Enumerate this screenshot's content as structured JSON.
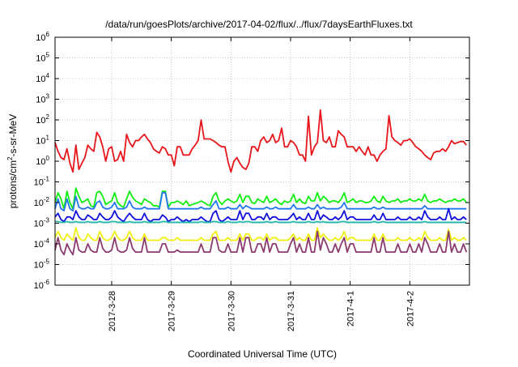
{
  "chart_data": {
    "type": "line",
    "title": "/data/run/goesPlots/archive/2017-04-02/flux/../flux/7daysEarthFluxes.txt",
    "xlabel": "Coordinated Universal Time (UTC)",
    "ylabel_prefix": "protons/cm",
    "ylabel_sup": "2",
    "ylabel_suffix": "-s-sr-MeV",
    "y_scale": "log",
    "ylim": [
      1e-06,
      1000000.0
    ],
    "y_ticks": [
      {
        "base": "10",
        "exp": "-6",
        "value": -6
      },
      {
        "base": "10",
        "exp": "-5",
        "value": -5
      },
      {
        "base": "10",
        "exp": "-4",
        "value": -4
      },
      {
        "base": "10",
        "exp": "-3",
        "value": -3
      },
      {
        "base": "10",
        "exp": "-2",
        "value": -2
      },
      {
        "base": "10",
        "exp": "-1",
        "value": -1
      },
      {
        "base": "10",
        "exp": "0",
        "value": 0
      },
      {
        "base": "10",
        "exp": "1",
        "value": 1
      },
      {
        "base": "10",
        "exp": "2",
        "value": 2
      },
      {
        "base": "10",
        "exp": "3",
        "value": 3
      },
      {
        "base": "10",
        "exp": "4",
        "value": 4
      },
      {
        "base": "10",
        "exp": "5",
        "value": 5
      },
      {
        "base": "10",
        "exp": "6",
        "value": 6
      }
    ],
    "x_range_days": [
      -0.95,
      6.0
    ],
    "x_ticks": [
      {
        "label": "2017-3-28",
        "day": 0
      },
      {
        "label": "2017-3-29",
        "day": 1
      },
      {
        "label": "2017-3-30",
        "day": 2
      },
      {
        "label": "2017-3-31",
        "day": 3
      },
      {
        "label": "2017-4-1",
        "day": 4
      },
      {
        "label": "2017-4-2",
        "day": 5
      }
    ],
    "grid": true,
    "x_start_day": -0.95,
    "x_step_days": 0.05,
    "series": [
      {
        "color": "#e8161b",
        "values": [
          8,
          3,
          1.5,
          1.2,
          4,
          0.8,
          0.3,
          6,
          0.4,
          0.8,
          1.5,
          6,
          4,
          3,
          25,
          15,
          5,
          1,
          4,
          5,
          1,
          1.2,
          3,
          1,
          20,
          8,
          5,
          10,
          10,
          15,
          20,
          12,
          8,
          4,
          3,
          2.5,
          5,
          4,
          2,
          2,
          0.6,
          5,
          5,
          2,
          2,
          2,
          4,
          6,
          10,
          100,
          12,
          12,
          12,
          10,
          8,
          6,
          5,
          5,
          1,
          0.3,
          1,
          1.5,
          0.8,
          0.5,
          0.4,
          0.8,
          5,
          5,
          3,
          10,
          15,
          8,
          10,
          20,
          8,
          10,
          40,
          5,
          5,
          10,
          8,
          5,
          2,
          2,
          1,
          150,
          2,
          5,
          8,
          300,
          10,
          8,
          15,
          5,
          5,
          30,
          20,
          15,
          5,
          5,
          5,
          3,
          5,
          3,
          2,
          5,
          2,
          2,
          1,
          2,
          3,
          4,
          160,
          15,
          10,
          8,
          6,
          10,
          10,
          12,
          8,
          5,
          4,
          3,
          2,
          1.5,
          1.2,
          2.5,
          3,
          3,
          4,
          3,
          5,
          10,
          7,
          8,
          9,
          9,
          6
        ]
      },
      {
        "color": "#10ee10",
        "values": [
          0.01,
          0.03,
          0.015,
          0.005,
          0.035,
          0.01,
          0.005,
          0.05,
          0.02,
          0.01,
          0.012,
          0.015,
          0.007,
          0.006,
          0.03,
          0.035,
          0.02,
          0.008,
          0.01,
          0.012,
          0.03,
          0.01,
          0.007,
          0.006,
          0.015,
          0.035,
          0.018,
          0.012,
          0.01,
          0.008,
          0.015,
          0.012,
          0.01,
          0.007,
          0.007,
          0.006,
          0.035,
          0.035,
          0.006,
          0.01,
          0.01,
          0.012,
          0.01,
          0.008,
          0.012,
          0.007,
          0.008,
          0.009,
          0.01,
          0.012,
          0.01,
          0.008,
          0.007,
          0.02,
          0.03,
          0.012,
          0.008,
          0.012,
          0.015,
          0.012,
          0.01,
          0.012,
          0.025,
          0.01,
          0.02,
          0.02,
          0.01,
          0.009,
          0.015,
          0.012,
          0.01,
          0.02,
          0.01,
          0.012,
          0.015,
          0.01,
          0.008,
          0.012,
          0.01,
          0.012,
          0.025,
          0.01,
          0.015,
          0.01,
          0.009,
          0.02,
          0.012,
          0.012,
          0.03,
          0.012,
          0.02,
          0.015,
          0.01,
          0.012,
          0.012,
          0.01,
          0.015,
          0.03,
          0.01,
          0.012,
          0.015,
          0.01,
          0.012,
          0.012,
          0.01,
          0.01,
          0.012,
          0.02,
          0.012,
          0.01,
          0.02,
          0.012,
          0.01,
          0.012,
          0.012,
          0.015,
          0.01,
          0.012,
          0.012,
          0.015,
          0.012,
          0.012,
          0.015,
          0.012,
          0.025,
          0.012,
          0.01,
          0.012,
          0.012,
          0.015,
          0.012,
          0.01,
          0.012,
          0.012,
          0.015,
          0.012,
          0.012,
          0.015,
          0.01
        ]
      },
      {
        "color": "#2277ee",
        "values": [
          0.005,
          0.015,
          0.005,
          0.004,
          0.015,
          0.005,
          0.004,
          0.02,
          0.006,
          0.005,
          0.005,
          0.006,
          0.005,
          0.005,
          0.01,
          0.012,
          0.006,
          0.005,
          0.005,
          0.006,
          0.01,
          0.005,
          0.005,
          0.005,
          0.006,
          0.012,
          0.006,
          0.005,
          0.005,
          0.005,
          0.006,
          0.005,
          0.005,
          0.005,
          0.005,
          0.005,
          0.03,
          0.03,
          0.005,
          0.005,
          0.005,
          0.005,
          0.005,
          0.005,
          0.005,
          0.005,
          0.005,
          0.005,
          0.005,
          0.006,
          0.005,
          0.005,
          0.005,
          0.008,
          0.012,
          0.005,
          0.005,
          0.005,
          0.006,
          0.005,
          0.005,
          0.005,
          0.008,
          0.005,
          0.007,
          0.006,
          0.005,
          0.005,
          0.005,
          0.005,
          0.005,
          0.006,
          0.005,
          0.005,
          0.006,
          0.005,
          0.005,
          0.005,
          0.005,
          0.005,
          0.008,
          0.005,
          0.005,
          0.005,
          0.005,
          0.006,
          0.005,
          0.005,
          0.008,
          0.005,
          0.006,
          0.005,
          0.005,
          0.005,
          0.005,
          0.005,
          0.006,
          0.01,
          0.005,
          0.005,
          0.005,
          0.005,
          0.005,
          0.005,
          0.005,
          0.005,
          0.005,
          0.006,
          0.005,
          0.005,
          0.006,
          0.005,
          0.005,
          0.005,
          0.005,
          0.005,
          0.005,
          0.005,
          0.005,
          0.005,
          0.005,
          0.005,
          0.005,
          0.005,
          0.007,
          0.005,
          0.005,
          0.005,
          0.005,
          0.005,
          0.005,
          0.005,
          0.005,
          0.005,
          0.005,
          0.005,
          0.005,
          0.005,
          0.005
        ]
      },
      {
        "color": "#1010dd",
        "values": [
          0.002,
          0.003,
          0.0015,
          0.0012,
          0.002,
          0.002,
          0.0015,
          0.004,
          0.002,
          0.0015,
          0.0015,
          0.0025,
          0.002,
          0.0015,
          0.0015,
          0.003,
          0.002,
          0.0015,
          0.0015,
          0.002,
          0.004,
          0.002,
          0.0015,
          0.0012,
          0.002,
          0.003,
          0.002,
          0.0015,
          0.0015,
          0.0015,
          0.003,
          0.0015,
          0.0012,
          0.0015,
          0.0015,
          0.0015,
          0.0025,
          0.002,
          0.0012,
          0.0015,
          0.0015,
          0.002,
          0.0015,
          0.0012,
          0.0015,
          0.0012,
          0.0015,
          0.0015,
          0.0015,
          0.002,
          0.0015,
          0.0012,
          0.0012,
          0.003,
          0.004,
          0.0015,
          0.0012,
          0.0015,
          0.002,
          0.0015,
          0.0015,
          0.0015,
          0.004,
          0.0015,
          0.003,
          0.003,
          0.0015,
          0.0015,
          0.002,
          0.002,
          0.0015,
          0.003,
          0.0015,
          0.002,
          0.002,
          0.0015,
          0.0015,
          0.0015,
          0.0015,
          0.002,
          0.003,
          0.0015,
          0.002,
          0.0015,
          0.0015,
          0.003,
          0.0015,
          0.0015,
          0.004,
          0.0015,
          0.0025,
          0.002,
          0.0015,
          0.0015,
          0.002,
          0.0015,
          0.002,
          0.004,
          0.0015,
          0.002,
          0.002,
          0.0015,
          0.0015,
          0.0015,
          0.0015,
          0.0015,
          0.0015,
          0.0025,
          0.0015,
          0.0015,
          0.003,
          0.0015,
          0.0015,
          0.0015,
          0.0015,
          0.002,
          0.0015,
          0.0015,
          0.0015,
          0.002,
          0.0015,
          0.0015,
          0.002,
          0.0015,
          0.004,
          0.002,
          0.0015,
          0.0015,
          0.0015,
          0.002,
          0.0015,
          0.0015,
          0.005,
          0.0015,
          0.002,
          0.0015,
          0.0015,
          0.002,
          0.0015
        ]
      },
      {
        "color": "#20b8a8",
        "values": [
          0.0012,
          0.0012,
          0.0011,
          0.0011,
          0.0012,
          0.0011,
          0.0011,
          0.0012,
          0.0011,
          0.0011,
          0.0011,
          0.0012,
          0.0011,
          0.0011,
          0.0011,
          0.0012,
          0.0011,
          0.0011,
          0.0011,
          0.0012,
          0.0012,
          0.0011,
          0.0011,
          0.0011,
          0.0011,
          0.0012,
          0.0011,
          0.0011,
          0.0011,
          0.0011,
          0.0012,
          0.0011,
          0.0011,
          0.0011,
          0.0011,
          0.0011,
          0.0012,
          0.0012,
          0.0011,
          0.0011,
          0.0011,
          0.0011,
          0.0011,
          0.0011,
          0.0011,
          0.0011,
          0.0011,
          0.0011,
          0.0011,
          0.0012,
          0.0011,
          0.0011,
          0.0011,
          0.0012,
          0.0012,
          0.0011,
          0.0011,
          0.0011,
          0.0012,
          0.0011,
          0.0011,
          0.0011,
          0.0012,
          0.0011,
          0.0012,
          0.0012,
          0.0011,
          0.0011,
          0.0011,
          0.0011,
          0.0011,
          0.0012,
          0.0011,
          0.0011,
          0.0012,
          0.0011,
          0.0011,
          0.0011,
          0.0011,
          0.0011,
          0.0012,
          0.0011,
          0.0011,
          0.0011,
          0.0011,
          0.0012,
          0.0011,
          0.0011,
          0.0012,
          0.0011,
          0.0012,
          0.0011,
          0.0011,
          0.0011,
          0.0011,
          0.0011,
          0.0012,
          0.0012,
          0.0011,
          0.0011,
          0.0011,
          0.0011,
          0.0011,
          0.0011,
          0.0011,
          0.0011,
          0.0011,
          0.0012,
          0.0011,
          0.0011,
          0.0012,
          0.0011,
          0.0011,
          0.0011,
          0.0011,
          0.0011,
          0.0011,
          0.0011,
          0.0011,
          0.0011,
          0.0011,
          0.0011,
          0.0011,
          0.0011,
          0.0012,
          0.0011,
          0.0011,
          0.0011,
          0.0011,
          0.0011,
          0.0011,
          0.0011,
          0.0011,
          0.0011,
          0.0011,
          0.0011,
          0.0011,
          0.0011,
          0.0011
        ]
      },
      {
        "color": "#f0f010",
        "values": [
          0.0002,
          0.0004,
          0.0002,
          0.00015,
          0.0003,
          0.0002,
          0.00015,
          0.0006,
          0.0002,
          0.00015,
          0.00015,
          0.0003,
          0.0002,
          0.00015,
          0.00015,
          0.0004,
          0.0002,
          0.00015,
          0.00015,
          0.0002,
          0.0004,
          0.0002,
          0.00015,
          0.00015,
          0.0002,
          0.0004,
          0.0002,
          0.00015,
          0.00015,
          0.00015,
          0.0003,
          0.00015,
          0.00015,
          0.00015,
          0.00015,
          0.00015,
          0.0002,
          0.0002,
          0.00015,
          0.00015,
          0.00015,
          0.0002,
          0.00015,
          0.00015,
          0.00015,
          0.00015,
          0.00015,
          0.00015,
          0.00015,
          0.0002,
          0.00015,
          0.00015,
          0.00015,
          0.0003,
          0.0004,
          0.00015,
          0.00015,
          0.00015,
          0.0002,
          0.00015,
          0.00015,
          0.00015,
          0.0003,
          0.00015,
          0.0003,
          0.0003,
          0.00015,
          0.00015,
          0.0002,
          0.0002,
          0.00015,
          0.0003,
          0.00015,
          0.0002,
          0.0002,
          0.00015,
          0.00015,
          0.00015,
          0.00015,
          0.0002,
          0.0003,
          0.00015,
          0.0002,
          0.00015,
          0.00015,
          0.0003,
          0.00015,
          0.00015,
          0.0006,
          0.0002,
          0.0003,
          0.0002,
          0.00015,
          0.00015,
          0.0002,
          0.00015,
          0.0002,
          0.0004,
          0.00015,
          0.0002,
          0.0002,
          0.00015,
          0.00015,
          0.00015,
          0.00015,
          0.00015,
          0.00015,
          0.0003,
          0.00015,
          0.00015,
          0.0003,
          0.00015,
          0.00015,
          0.00015,
          0.00015,
          0.0002,
          0.00015,
          0.00015,
          0.00015,
          0.0002,
          0.00015,
          0.00015,
          0.0002,
          0.00015,
          0.0004,
          0.0002,
          0.00015,
          0.00015,
          0.00015,
          0.0002,
          0.00015,
          0.00015,
          0.0005,
          0.00015,
          0.0002,
          0.00015,
          0.00015,
          0.0002,
          0.00015
        ]
      },
      {
        "color": "#8b3a6e",
        "values": [
          5e-05,
          0.0002,
          5e-05,
          3e-05,
          0.0001,
          5e-05,
          3e-05,
          0.0002,
          5e-05,
          4e-05,
          4e-05,
          0.0001,
          5e-05,
          4e-05,
          4e-05,
          0.0002,
          6e-05,
          4e-05,
          4e-05,
          5e-05,
          0.0002,
          5e-05,
          4e-05,
          4e-05,
          5e-05,
          0.0002,
          6e-05,
          4e-05,
          4e-05,
          4e-05,
          0.0002,
          4e-05,
          4e-05,
          4e-05,
          4e-05,
          4e-05,
          0.0001,
          0.0001,
          4e-05,
          4e-05,
          4e-05,
          5e-05,
          4e-05,
          4e-05,
          4e-05,
          4e-05,
          4e-05,
          4e-05,
          4e-05,
          0.0001,
          4e-05,
          4e-05,
          4e-05,
          0.0002,
          0.0002,
          5e-05,
          4e-05,
          4e-05,
          0.0001,
          4e-05,
          4e-05,
          4e-05,
          0.0002,
          4e-05,
          0.0002,
          0.0002,
          4e-05,
          4e-05,
          0.0001,
          0.0001,
          4e-05,
          0.0002,
          4e-05,
          0.0001,
          0.0001,
          4e-05,
          4e-05,
          4e-05,
          4e-05,
          0.0001,
          0.0002,
          4e-05,
          0.0001,
          4e-05,
          4e-05,
          0.0002,
          4e-05,
          4e-05,
          0.0004,
          5e-05,
          0.0002,
          0.0001,
          4e-05,
          4e-05,
          0.0001,
          4e-05,
          0.0001,
          0.0002,
          4e-05,
          0.0001,
          0.0001,
          4e-05,
          4e-05,
          4e-05,
          4e-05,
          4e-05,
          4e-05,
          0.0002,
          4e-05,
          4e-05,
          0.0002,
          4e-05,
          4e-05,
          4e-05,
          4e-05,
          0.0001,
          4e-05,
          4e-05,
          4e-05,
          0.0001,
          4e-05,
          4e-05,
          0.0001,
          4e-05,
          0.0002,
          0.0001,
          4e-05,
          4e-05,
          4e-05,
          0.0001,
          4e-05,
          4e-05,
          0.0004,
          4e-05,
          0.0001,
          4e-05,
          4e-05,
          0.0001,
          4e-05
        ]
      }
    ]
  }
}
